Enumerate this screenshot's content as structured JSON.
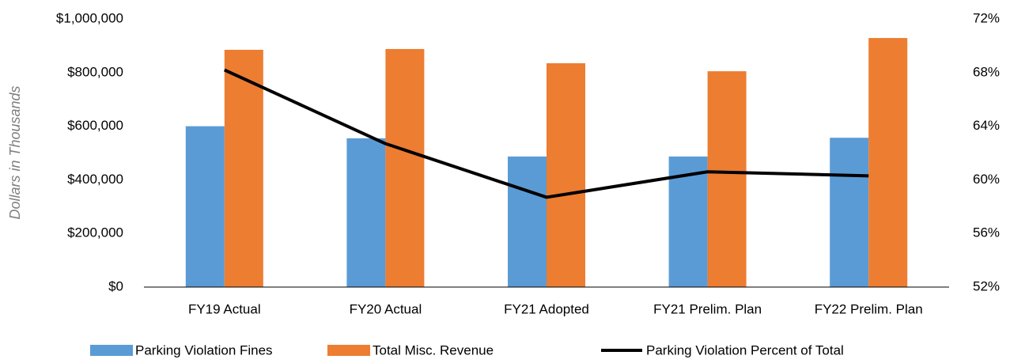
{
  "chart_data": {
    "type": "bar",
    "y_label": "Dollars in Thousands",
    "categories": [
      "FY19 Actual",
      "FY20 Actual",
      "FY21 Adopted",
      "FY21 Prelim. Plan",
      "FY22 Prelim. Plan"
    ],
    "series": [
      {
        "name": "Parking Violation Fines",
        "type": "bar",
        "color": "#5b9bd5",
        "values": [
          600000,
          555000,
          487000,
          487000,
          557000
        ]
      },
      {
        "name": "Total Misc. Revenue",
        "type": "bar",
        "color": "#ed7d31",
        "values": [
          885000,
          888000,
          835000,
          805000,
          929000
        ]
      },
      {
        "name": "Parking Violation Percent of Total",
        "type": "line",
        "axis": "y2",
        "color": "#000000",
        "values": [
          68.2,
          62.7,
          58.7,
          60.6,
          60.3
        ]
      }
    ],
    "ylim": [
      0,
      1000000
    ],
    "yticks": [
      {
        "value": 0,
        "label": "$0"
      },
      {
        "value": 200000,
        "label": "$200,000"
      },
      {
        "value": 400000,
        "label": "$400,000"
      },
      {
        "value": 600000,
        "label": "$600,000"
      },
      {
        "value": 800000,
        "label": "$800,000"
      },
      {
        "value": 1000000,
        "label": "$1,000,000"
      }
    ],
    "y2lim": [
      52,
      72
    ],
    "y2ticks": [
      {
        "value": 52,
        "label": "52%"
      },
      {
        "value": 56,
        "label": "56%"
      },
      {
        "value": 60,
        "label": "60%"
      },
      {
        "value": 64,
        "label": "64%"
      },
      {
        "value": 68,
        "label": "68%"
      },
      {
        "value": 72,
        "label": "72%"
      }
    ],
    "grid": false
  }
}
